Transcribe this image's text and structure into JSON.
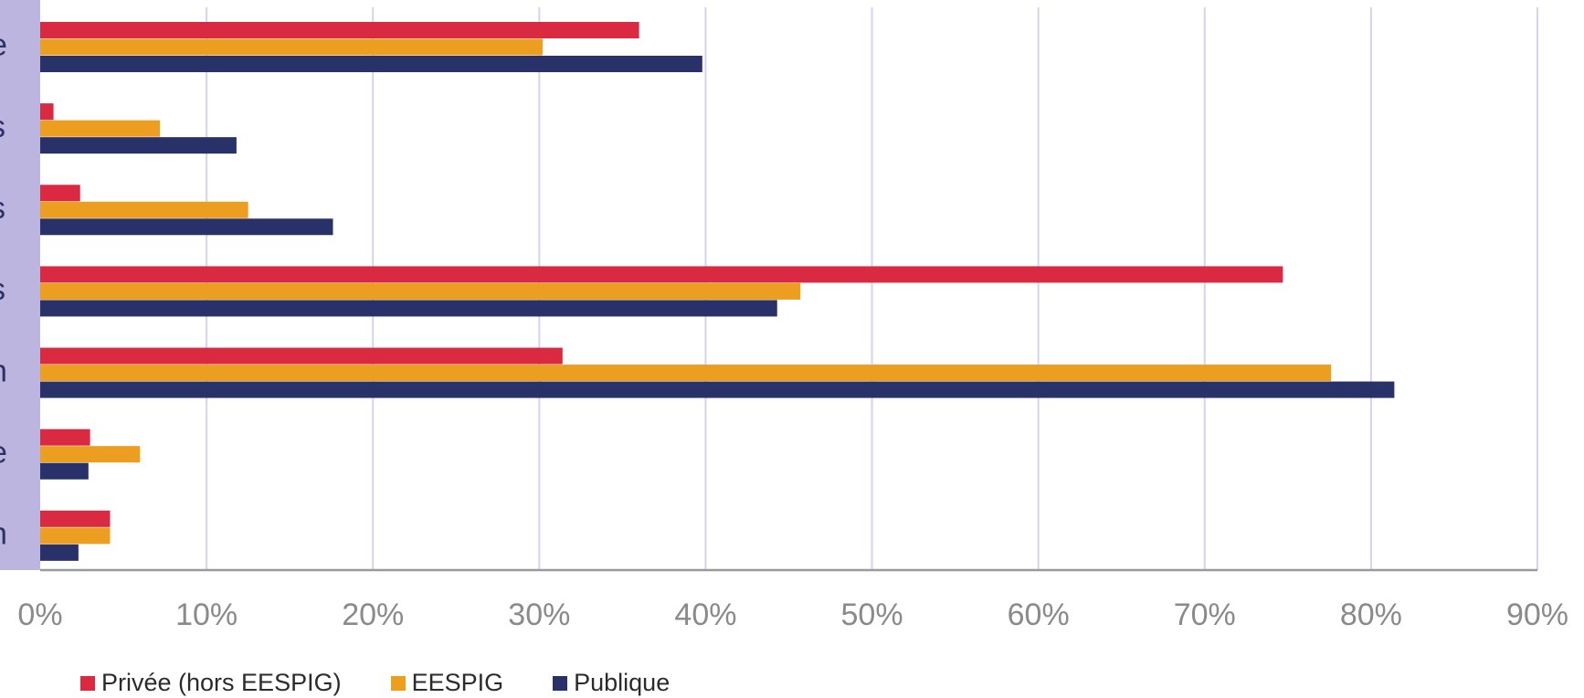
{
  "chart_data": {
    "type": "bar",
    "orientation": "horizontal",
    "categories": [
      "e",
      "s",
      "s",
      "s",
      "n",
      "e",
      "n"
    ],
    "series": [
      {
        "name": "Privée (hors EESPIG)",
        "color": "#d92a42",
        "values": [
          36.0,
          0.8,
          2.4,
          74.7,
          31.4,
          3.0,
          4.2
        ]
      },
      {
        "name": "EESPIG",
        "color": "#eb9e20",
        "values": [
          30.2,
          7.2,
          12.5,
          45.7,
          77.6,
          6.0,
          4.2
        ]
      },
      {
        "name": "Publique",
        "color": "#293268",
        "values": [
          39.8,
          11.8,
          17.6,
          44.3,
          81.4,
          2.9,
          2.3
        ]
      }
    ],
    "xlim": [
      0,
      90
    ],
    "xticks": [
      "0%",
      "10%",
      "20%",
      "30%",
      "40%",
      "50%",
      "60%",
      "70%",
      "80%",
      "90%"
    ],
    "grid": true,
    "legend_position": "bottom-left",
    "category_axis_color": "#bcb5e0",
    "grid_color": "#d6d3ee",
    "axis_color": "#9a9a9a"
  }
}
